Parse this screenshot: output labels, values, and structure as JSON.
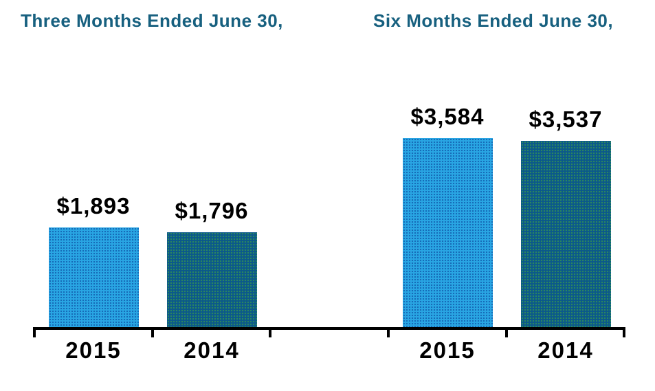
{
  "chart_data": {
    "type": "bar",
    "title": "",
    "xlabel": "",
    "ylabel": "",
    "grid": false,
    "legend": false,
    "axis_line": "bottom only, black, with tick marks between each bar segment",
    "value_prefix": "$",
    "groups": [
      {
        "title": "Three Months Ended June 30,",
        "bars": [
          {
            "year": "2015",
            "value": 1893,
            "label": "$1,893",
            "palette": "light"
          },
          {
            "year": "2014",
            "value": 1796,
            "label": "$1,796",
            "palette": "dark"
          }
        ]
      },
      {
        "title": "Six Months Ended June 30,",
        "bars": [
          {
            "year": "2015",
            "value": 3584,
            "label": "$3,584",
            "palette": "light"
          },
          {
            "year": "2014",
            "value": 3537,
            "label": "$3,537",
            "palette": "dark"
          }
        ]
      }
    ]
  },
  "colors": {
    "heading": "#17607F",
    "bar-light": "#29A5E3",
    "bar-light-dot": "#1467B5",
    "bar-dark": "#0C5A8A",
    "bar-dark-dot": "#2F8B5A",
    "axis": "#000000",
    "label": "#000000"
  }
}
